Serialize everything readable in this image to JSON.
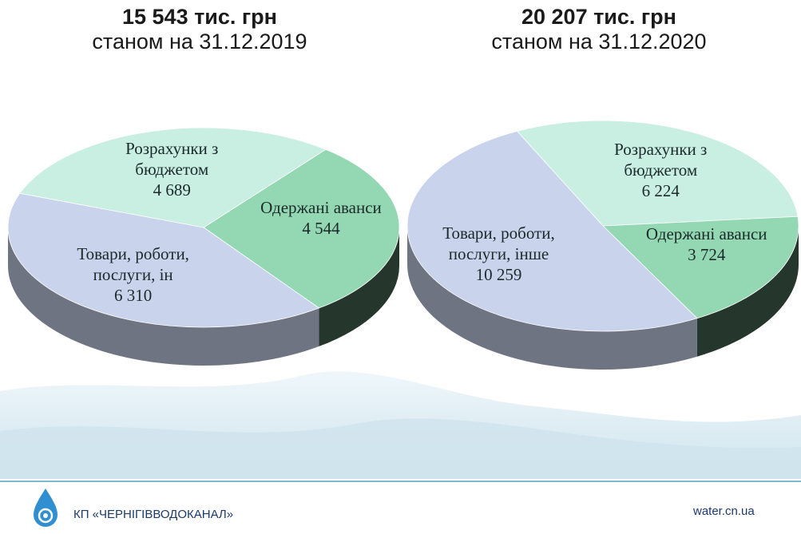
{
  "chart_data": [
    {
      "type": "pie",
      "title": "15 543 тис. грн",
      "subtitle": "станом на 31.12.2019",
      "categories": [
        "Розрахунки з бюджетом",
        "Одержані аванси",
        "Товари, роботи, послуги, ін"
      ],
      "values": [
        4689,
        4544,
        6310
      ],
      "value_labels": [
        "4 689",
        "4 544",
        "6 310"
      ],
      "colors": [
        "#c9eee2",
        "#93d8b2",
        "#c9d3ec"
      ]
    },
    {
      "type": "pie",
      "title": "20 207 тис. грн",
      "subtitle": "станом на 31.12.2020",
      "categories": [
        "Розрахунки з бюджетом",
        "Одержані аванси",
        "Товари, роботи, послуги, інше"
      ],
      "values": [
        6224,
        3724,
        10259
      ],
      "value_labels": [
        "6 224",
        "3 724",
        "10 259"
      ],
      "colors": [
        "#c9eee2",
        "#93d8b2",
        "#c9d3ec"
      ]
    }
  ],
  "footer": {
    "company": "КП «ЧЕРНІГІВВОДОКАНАЛ»",
    "site": "water.cn.ua"
  }
}
